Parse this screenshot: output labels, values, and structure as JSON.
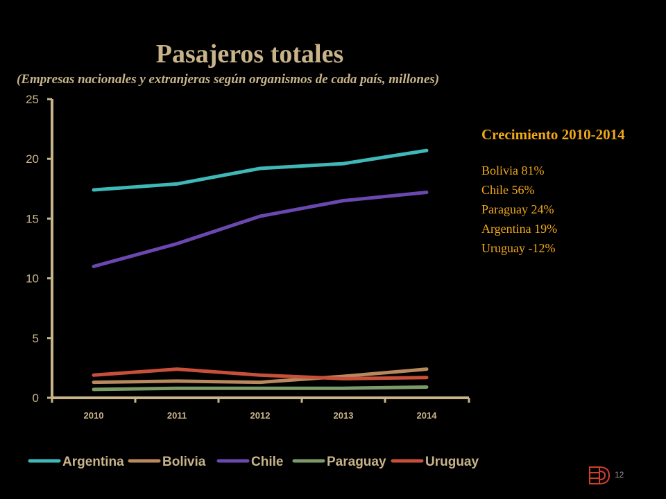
{
  "chart_data": {
    "type": "line",
    "title": "Pasajeros totales",
    "subtitle": "(Empresas nacionales y extranjeras según organismos de cada país, millones)",
    "xlabel": "",
    "ylabel": "",
    "categories": [
      "2010",
      "2011",
      "2012",
      "2013",
      "2014"
    ],
    "ylim": [
      0,
      25
    ],
    "yticks": [
      "0",
      "5",
      "10",
      "15",
      "20",
      "25"
    ],
    "grid": false,
    "legend_position": "bottom",
    "series": [
      {
        "name": "Argentina",
        "color": "#3fb8b8",
        "values": [
          17.4,
          17.9,
          19.2,
          19.6,
          20.7
        ]
      },
      {
        "name": "Bolivia",
        "color": "#b8885e",
        "values": [
          1.3,
          1.4,
          1.3,
          1.8,
          2.4
        ]
      },
      {
        "name": "Chile",
        "color": "#6a48b0",
        "values": [
          11.0,
          12.9,
          15.2,
          16.5,
          17.2
        ]
      },
      {
        "name": "Paraguay",
        "color": "#7a9a68",
        "values": [
          0.7,
          0.8,
          0.8,
          0.8,
          0.9
        ]
      },
      {
        "name": "Uruguay",
        "color": "#c8503a",
        "values": [
          1.9,
          2.4,
          1.9,
          1.6,
          1.7
        ]
      }
    ]
  },
  "growth": {
    "title": "Crecimiento 2010-2014",
    "items": [
      "Bolivia  81%",
      "Chile 56%",
      "Paraguay 24%",
      "Argentina  19%",
      "Uruguay  -12%"
    ]
  },
  "page": {
    "number": "12"
  },
  "colors": {
    "axis": "#c9b48a",
    "highlight": "#f0a818",
    "logo": "#d0402a"
  }
}
